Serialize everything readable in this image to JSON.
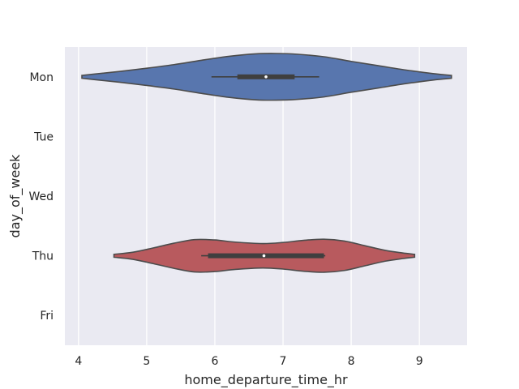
{
  "chart_data": {
    "type": "violin",
    "orientation": "horizontal",
    "title": "",
    "xlabel": "home_departure_time_hr",
    "ylabel": "day_of_week",
    "categories": [
      "Mon",
      "Tue",
      "Wed",
      "Thu",
      "Fri"
    ],
    "xlim": [
      3.8,
      9.7
    ],
    "xticks": [
      4,
      5,
      6,
      7,
      8,
      9
    ],
    "grid": true,
    "colors": {
      "background": "#EAEAF2",
      "grid": "#FFFFFF",
      "outline": "#4C4C4C",
      "box": "#3F3F3F",
      "median": "#FFFFFF"
    },
    "violins": [
      {
        "category": "Mon",
        "color": "#5876AE",
        "min": 4.05,
        "max": 9.47,
        "q1": 6.33,
        "median": 6.75,
        "q3": 7.17,
        "whisker_low": 5.95,
        "whisker_high": 7.53,
        "density": [
          [
            4.05,
            0.04
          ],
          [
            4.3,
            0.09
          ],
          [
            4.6,
            0.15
          ],
          [
            5.0,
            0.24
          ],
          [
            5.4,
            0.34
          ],
          [
            5.8,
            0.46
          ],
          [
            6.2,
            0.57
          ],
          [
            6.6,
            0.64
          ],
          [
            6.9,
            0.65
          ],
          [
            7.2,
            0.63
          ],
          [
            7.6,
            0.56
          ],
          [
            8.0,
            0.43
          ],
          [
            8.4,
            0.31
          ],
          [
            8.8,
            0.19
          ],
          [
            9.2,
            0.09
          ],
          [
            9.47,
            0.04
          ]
        ]
      },
      {
        "category": "Thu",
        "color": "#B85A5E",
        "min": 4.52,
        "max": 8.93,
        "q1": 5.9,
        "median": 6.72,
        "q3": 7.6,
        "whisker_low": 5.8,
        "whisker_high": 7.62,
        "density": [
          [
            4.52,
            0.04
          ],
          [
            4.8,
            0.1
          ],
          [
            5.1,
            0.22
          ],
          [
            5.4,
            0.35
          ],
          [
            5.7,
            0.45
          ],
          [
            6.0,
            0.44
          ],
          [
            6.3,
            0.38
          ],
          [
            6.7,
            0.34
          ],
          [
            7.0,
            0.37
          ],
          [
            7.3,
            0.43
          ],
          [
            7.6,
            0.46
          ],
          [
            7.9,
            0.41
          ],
          [
            8.2,
            0.28
          ],
          [
            8.5,
            0.15
          ],
          [
            8.75,
            0.08
          ],
          [
            8.93,
            0.04
          ]
        ]
      }
    ]
  }
}
